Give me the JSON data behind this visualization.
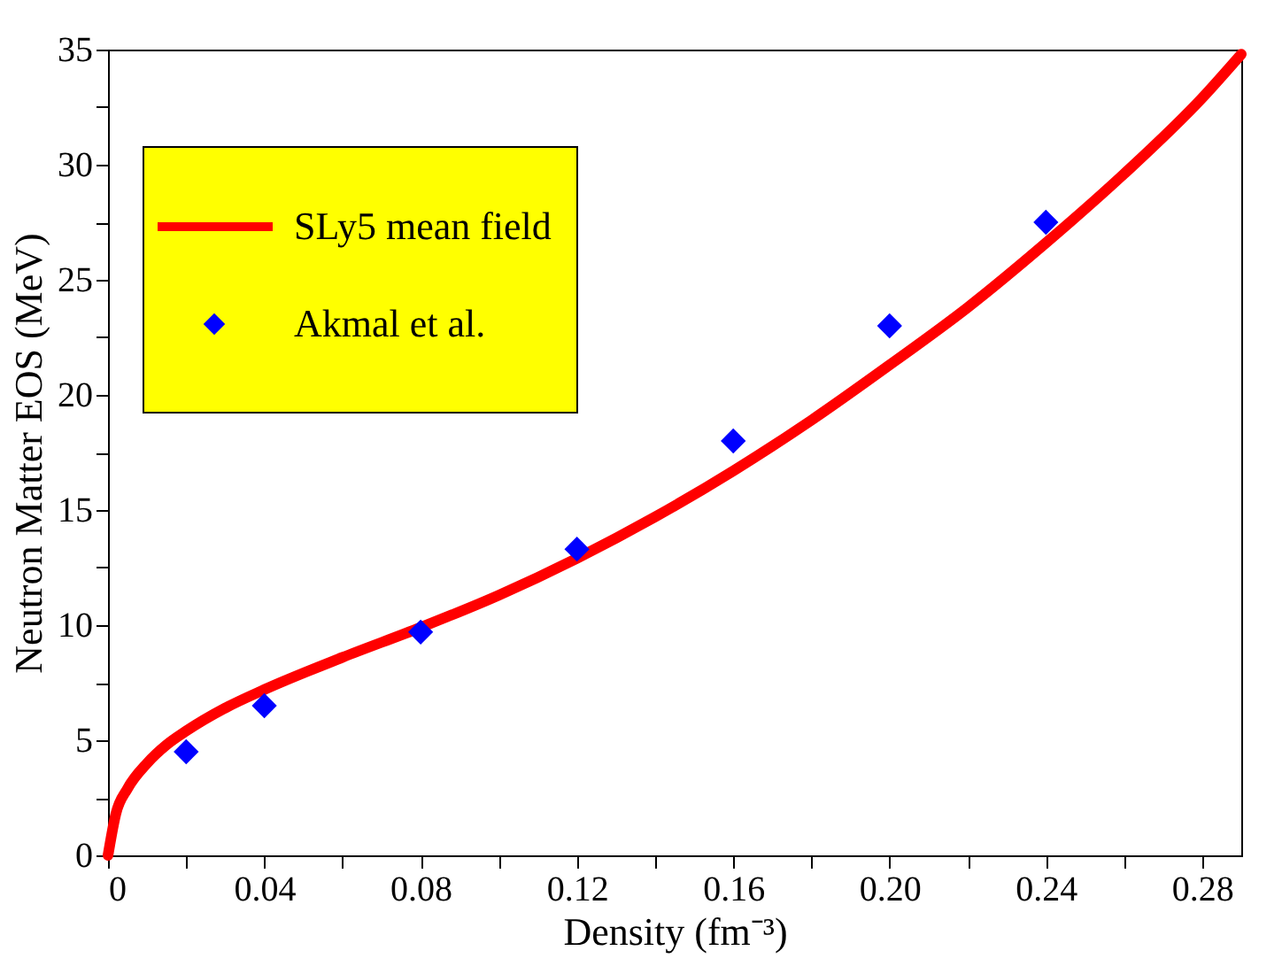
{
  "chart_data": {
    "type": "line",
    "xlabel": "Density (fm⁻³)",
    "ylabel": "Neutron Matter EOS (MeV)",
    "xlim": [
      0,
      0.29
    ],
    "ylim": [
      0,
      35
    ],
    "xticks": [
      0,
      {
        "value": 0.02,
        "label": null
      },
      0.04,
      {
        "value": 0.06,
        "label": null
      },
      0.08,
      {
        "value": 0.1,
        "label": null
      },
      0.12,
      {
        "value": 0.14,
        "label": null
      },
      0.16,
      {
        "value": 0.18,
        "label": null
      },
      {
        "value": 0.2,
        "label": "0.20"
      },
      {
        "value": 0.22,
        "label": null
      },
      0.24,
      {
        "value": 0.26,
        "label": null
      },
      0.28
    ],
    "yticks": [
      0,
      {
        "value": 2.5,
        "label": null
      },
      5,
      {
        "value": 7.5,
        "label": null
      },
      10,
      {
        "value": 12.5,
        "label": null
      },
      15,
      {
        "value": 17.5,
        "label": null
      },
      20,
      {
        "value": 22.5,
        "label": null
      },
      25,
      {
        "value": 27.5,
        "label": null
      },
      30,
      {
        "value": 32.5,
        "label": null
      },
      35
    ],
    "grid": false,
    "legend": "top left",
    "series": [
      {
        "name": "SLy5 mean field",
        "color": "#ff0000",
        "line_style": "solid",
        "marker": "none",
        "x": [
          0,
          0.002,
          0.005,
          0.01,
          0.015,
          0.02,
          0.03,
          0.04,
          0.06,
          0.08,
          0.1,
          0.12,
          0.14,
          0.16,
          0.18,
          0.2,
          0.22,
          0.24,
          0.26,
          0.28,
          0.29
        ],
        "values": [
          0,
          1.8,
          2.9,
          4.0,
          4.8,
          5.4,
          6.4,
          7.2,
          8.6,
          9.9,
          11.3,
          12.9,
          14.7,
          16.7,
          18.9,
          21.3,
          23.8,
          26.6,
          29.6,
          32.9,
          34.8
        ]
      },
      {
        "name": "Akmal et al.",
        "type": "scatter",
        "color": "#0000ff",
        "marker": "diamond",
        "x": [
          0.02,
          0.04,
          0.08,
          0.12,
          0.16,
          0.2,
          0.24
        ],
        "values": [
          4.5,
          6.5,
          9.7,
          13.3,
          18.0,
          23.0,
          27.5
        ]
      }
    ]
  }
}
